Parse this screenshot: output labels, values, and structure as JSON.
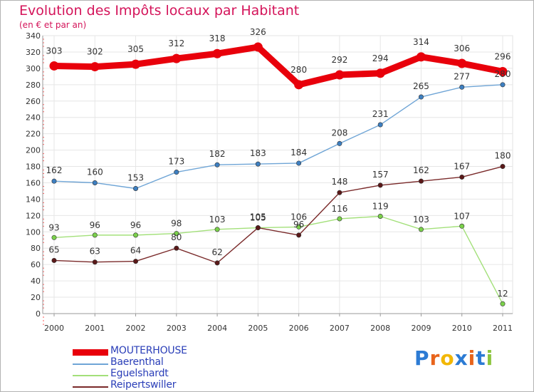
{
  "title": "Evolution des Impôts locaux par Habitant",
  "subtitle": "(en € et par an)",
  "logo": {
    "text": "Proxiti",
    "letters": [
      "P",
      "r",
      "o",
      "x",
      "i",
      "t",
      "i"
    ],
    "colors": [
      "#2c7bd4",
      "#e8641b",
      "#f2b705",
      "#2c7bd4",
      "#e8641b",
      "#2c7bd4",
      "#8dc63f"
    ]
  },
  "chart_data": {
    "type": "line",
    "title": "Evolution des Impôts locaux par Habitant",
    "subtitle": "(en € et par an)",
    "xlabel": "",
    "ylabel": "",
    "ylim": [
      0,
      340
    ],
    "ytick_step": 20,
    "grid": true,
    "legend_position": "bottom-left",
    "categories": [
      "2000",
      "2001",
      "2002",
      "2003",
      "2004",
      "2005",
      "2006",
      "2007",
      "2008",
      "2009",
      "2010",
      "2011"
    ],
    "series": [
      {
        "name": "MOUTERHOUSE",
        "color": "#e8000b",
        "marker_color": "#e8000b",
        "style": "thick",
        "values": [
          303,
          302,
          305,
          312,
          318,
          326,
          280,
          292,
          294,
          314,
          306,
          296
        ],
        "labels": [
          "303",
          "302",
          "305",
          "312",
          "318",
          "326",
          "280",
          "292",
          "294",
          "314",
          "306",
          "296"
        ]
      },
      {
        "name": "Baerenthal",
        "color": "#6fa5d6",
        "marker_color": "#3d7fc1",
        "style": "thin",
        "values": [
          162,
          160,
          153,
          173,
          182,
          183,
          184,
          208,
          231,
          265,
          277,
          280
        ],
        "labels": [
          "162",
          "160",
          "153",
          "173",
          "182",
          "183",
          "184",
          "208",
          "231",
          "265",
          "277",
          "280"
        ]
      },
      {
        "name": "Eguelshardt",
        "color": "#a3e07a",
        "marker_color": "#7ad14a",
        "style": "thin",
        "values": [
          93,
          96,
          96,
          98,
          103,
          105,
          106,
          116,
          119,
          103,
          107,
          12
        ],
        "labels": [
          "93",
          "96",
          "96",
          "98",
          "103",
          "105",
          "106",
          "116",
          "119",
          "103",
          "107",
          "12"
        ]
      },
      {
        "name": "Reipertswiller",
        "color": "#7a2a2a",
        "marker_color": "#5a1818",
        "style": "thin",
        "values": [
          65,
          63,
          64,
          80,
          62,
          105,
          96,
          148,
          157,
          162,
          167,
          180
        ],
        "labels": [
          "65",
          "63",
          "64",
          "80",
          "62",
          "105",
          "96",
          "148",
          "157",
          "162",
          "167",
          "180"
        ]
      }
    ]
  }
}
